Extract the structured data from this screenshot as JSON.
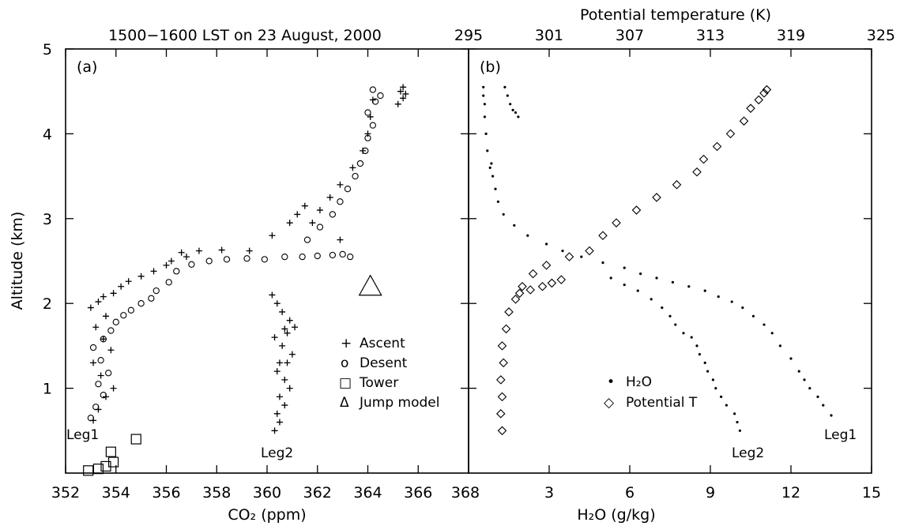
{
  "header": {
    "title": "1500−1600 LST on 23 August, 2000",
    "top_axis_title": "Potential temperature (K)"
  },
  "chart_data": [
    {
      "panel": "(a)",
      "type": "scatter",
      "xlabel": "CO₂ (ppm)",
      "ylabel": "Altitude (km)",
      "xlim": [
        352,
        368
      ],
      "ylim": [
        0,
        5
      ],
      "x_ticks": [
        352,
        354,
        356,
        358,
        360,
        362,
        364,
        366,
        368
      ],
      "x_tick_labels": [
        "352",
        "354",
        "356",
        "358",
        "360",
        "362",
        "364",
        "366",
        "368"
      ],
      "y_ticks": [
        1,
        2,
        3,
        4,
        5
      ],
      "y_tick_labels": [
        "1",
        "2",
        "3",
        "4",
        "5"
      ],
      "grid": false,
      "legend": {
        "position": "bottom-right",
        "entries": [
          {
            "marker": "+",
            "label": "Ascent"
          },
          {
            "marker": "o",
            "label": "Desent"
          },
          {
            "marker": "□",
            "label": "Tower"
          },
          {
            "marker": "Δ",
            "label": "Jump model"
          }
        ]
      },
      "annotations": [
        "Leg1",
        "Leg2"
      ],
      "series": [
        {
          "name": "Ascent",
          "marker": "plus",
          "x": [
            353.1,
            353.3,
            353.6,
            353.9,
            353.4,
            353.1,
            353.8,
            353.5,
            353.2,
            353.6,
            353.0,
            353.3,
            353.5,
            353.9,
            354.2,
            354.5,
            355.0,
            355.5,
            356.0,
            356.2,
            356.8,
            356.6,
            357.3,
            358.2,
            359.3,
            360.2,
            360.9,
            361.2,
            361.5,
            361.8,
            362.1,
            362.5,
            362.9,
            362.9,
            363.4,
            363.8,
            364.0,
            364.1,
            364.2
          ],
          "y": [
            0.62,
            0.75,
            0.9,
            1.0,
            1.15,
            1.3,
            1.45,
            1.58,
            1.72,
            1.85,
            1.95,
            2.02,
            2.08,
            2.12,
            2.2,
            2.26,
            2.32,
            2.38,
            2.45,
            2.5,
            2.55,
            2.6,
            2.62,
            2.63,
            2.62,
            2.8,
            2.95,
            3.05,
            3.15,
            2.95,
            3.1,
            3.25,
            3.4,
            2.75,
            3.6,
            3.8,
            4.0,
            4.2,
            4.4
          ]
        },
        {
          "name": "Leg2",
          "marker": "plus",
          "x": [
            360.3,
            360.5,
            360.4,
            360.7,
            360.5,
            360.9,
            360.7,
            360.4,
            360.8,
            361.0,
            360.6,
            360.3,
            360.7,
            360.9,
            360.6,
            360.4,
            361.1,
            360.8,
            360.5,
            360.2
          ],
          "y": [
            0.5,
            0.6,
            0.7,
            0.8,
            0.9,
            1.0,
            1.1,
            1.2,
            1.3,
            1.4,
            1.5,
            1.6,
            1.7,
            1.8,
            1.9,
            2.0,
            1.72,
            1.65,
            1.3,
            2.1
          ]
        },
        {
          "name": "Desent",
          "marker": "circle",
          "x": [
            353.0,
            353.2,
            353.5,
            353.3,
            353.7,
            353.4,
            353.1,
            353.5,
            353.8,
            354.0,
            354.3,
            354.6,
            355.0,
            355.4,
            355.6,
            356.1,
            356.4,
            357.0,
            357.7,
            358.4,
            359.2,
            359.9,
            360.7,
            361.4,
            362.0,
            362.6,
            363.0,
            363.3,
            361.6,
            362.1,
            362.6,
            362.9,
            363.2,
            363.5,
            363.7,
            363.9,
            364.0,
            364.2,
            364.0,
            364.3,
            364.5,
            364.2
          ],
          "y": [
            0.65,
            0.78,
            0.92,
            1.05,
            1.18,
            1.33,
            1.48,
            1.58,
            1.68,
            1.78,
            1.86,
            1.92,
            2.0,
            2.06,
            2.15,
            2.25,
            2.38,
            2.46,
            2.5,
            2.52,
            2.53,
            2.52,
            2.55,
            2.55,
            2.56,
            2.57,
            2.58,
            2.55,
            2.75,
            2.9,
            3.05,
            3.2,
            3.35,
            3.5,
            3.65,
            3.8,
            3.95,
            4.1,
            4.25,
            4.38,
            4.45,
            4.52
          ]
        },
        {
          "name": "Ascent upper cluster",
          "marker": "plus",
          "x": [
            365.2,
            365.4,
            365.3,
            365.5,
            365.4
          ],
          "y": [
            4.35,
            4.42,
            4.5,
            4.47,
            4.55
          ]
        },
        {
          "name": "Tower",
          "marker": "square",
          "x": [
            352.9,
            353.3,
            353.6,
            353.9,
            353.8,
            354.8
          ],
          "y": [
            0.03,
            0.05,
            0.08,
            0.13,
            0.25,
            0.4
          ]
        },
        {
          "name": "Jump model",
          "marker": "triangle",
          "x": [
            364.1
          ],
          "y": [
            2.2
          ]
        }
      ]
    },
    {
      "panel": "(b)",
      "type": "scatter",
      "xlabel": "H₂O (g/kg)",
      "x2label": "Potential temperature (K)",
      "xlim": [
        0,
        15
      ],
      "x2lim": [
        295,
        325
      ],
      "ylim": [
        0,
        5
      ],
      "x_ticks": [
        3,
        6,
        9,
        12,
        15
      ],
      "x_tick_labels": [
        "3",
        "6",
        "9",
        "12",
        "15"
      ],
      "x2_ticks": [
        295,
        301,
        307,
        313,
        319,
        325
      ],
      "x2_tick_labels": [
        "295",
        "301",
        "307",
        "313",
        "319",
        "325"
      ],
      "grid": false,
      "legend": {
        "position": "bottom-center",
        "entries": [
          {
            "marker": "•",
            "label": "H₂O"
          },
          {
            "marker": "◇",
            "label": "Potential T"
          }
        ]
      },
      "annotations": [
        "Leg1",
        "Leg2"
      ],
      "series": [
        {
          "name": "H₂O",
          "marker": "dot",
          "x": [
            13.5,
            13.2,
            13.0,
            12.7,
            12.5,
            12.3,
            12.0,
            11.6,
            11.3,
            11.0,
            10.6,
            10.2,
            9.8,
            9.3,
            8.8,
            8.2,
            7.6,
            7.0,
            6.4,
            5.8,
            5.0,
            4.2,
            3.5,
            2.9,
            2.2,
            1.7,
            1.3,
            1.1,
            1.0,
            0.9,
            0.85,
            0.8,
            0.7,
            0.65,
            0.6,
            0.6,
            0.55,
            0.55
          ],
          "y": [
            0.68,
            0.8,
            0.9,
            1.0,
            1.1,
            1.2,
            1.35,
            1.5,
            1.65,
            1.75,
            1.85,
            1.95,
            2.02,
            2.08,
            2.15,
            2.2,
            2.25,
            2.3,
            2.35,
            2.42,
            2.48,
            2.55,
            2.62,
            2.7,
            2.8,
            2.92,
            3.05,
            3.2,
            3.35,
            3.5,
            3.65,
            3.6,
            3.8,
            4.0,
            4.2,
            4.35,
            4.45,
            4.55
          ]
        },
        {
          "name": "H₂O Leg2",
          "marker": "dot",
          "x": [
            10.1,
            10.0,
            9.9,
            9.6,
            9.4,
            9.2,
            9.1,
            8.9,
            8.8,
            8.6,
            8.5,
            8.3,
            8.0,
            7.7,
            7.5,
            7.2,
            6.8,
            6.3,
            5.8,
            5.3
          ],
          "y": [
            0.5,
            0.6,
            0.7,
            0.8,
            0.9,
            1.0,
            1.1,
            1.2,
            1.3,
            1.4,
            1.5,
            1.6,
            1.65,
            1.75,
            1.85,
            1.95,
            2.05,
            2.15,
            2.22,
            2.3
          ]
        },
        {
          "name": "H₂O upper segments",
          "marker": "dot",
          "x": [
            1.35,
            1.45,
            1.55,
            1.65,
            1.75,
            1.85
          ],
          "y": [
            4.55,
            4.45,
            4.35,
            4.28,
            4.25,
            4.2
          ]
        },
        {
          "name": "Potential T",
          "marker": "diamond",
          "x2": [
            297.5,
            297.4,
            297.5,
            297.4,
            297.6,
            297.5,
            297.8,
            298.0,
            298.5,
            299.0,
            299.8,
            300.8,
            302.5,
            304.0,
            305.0,
            306.0,
            307.5,
            309.0,
            310.5,
            312.0,
            312.5,
            313.5,
            314.5,
            315.5,
            316.0,
            316.6,
            317.0,
            317.2
          ],
          "y": [
            0.5,
            0.7,
            0.9,
            1.1,
            1.3,
            1.5,
            1.7,
            1.9,
            2.05,
            2.2,
            2.35,
            2.45,
            2.55,
            2.62,
            2.8,
            2.95,
            3.1,
            3.25,
            3.4,
            3.55,
            3.7,
            3.85,
            4.0,
            4.15,
            4.3,
            4.4,
            4.48,
            4.52
          ]
        },
        {
          "name": "Potential T Leg2",
          "marker": "diamond",
          "x2": [
            298.8,
            299.6,
            300.5,
            301.2,
            301.9
          ],
          "y": [
            2.12,
            2.16,
            2.2,
            2.24,
            2.28
          ]
        }
      ]
    }
  ]
}
